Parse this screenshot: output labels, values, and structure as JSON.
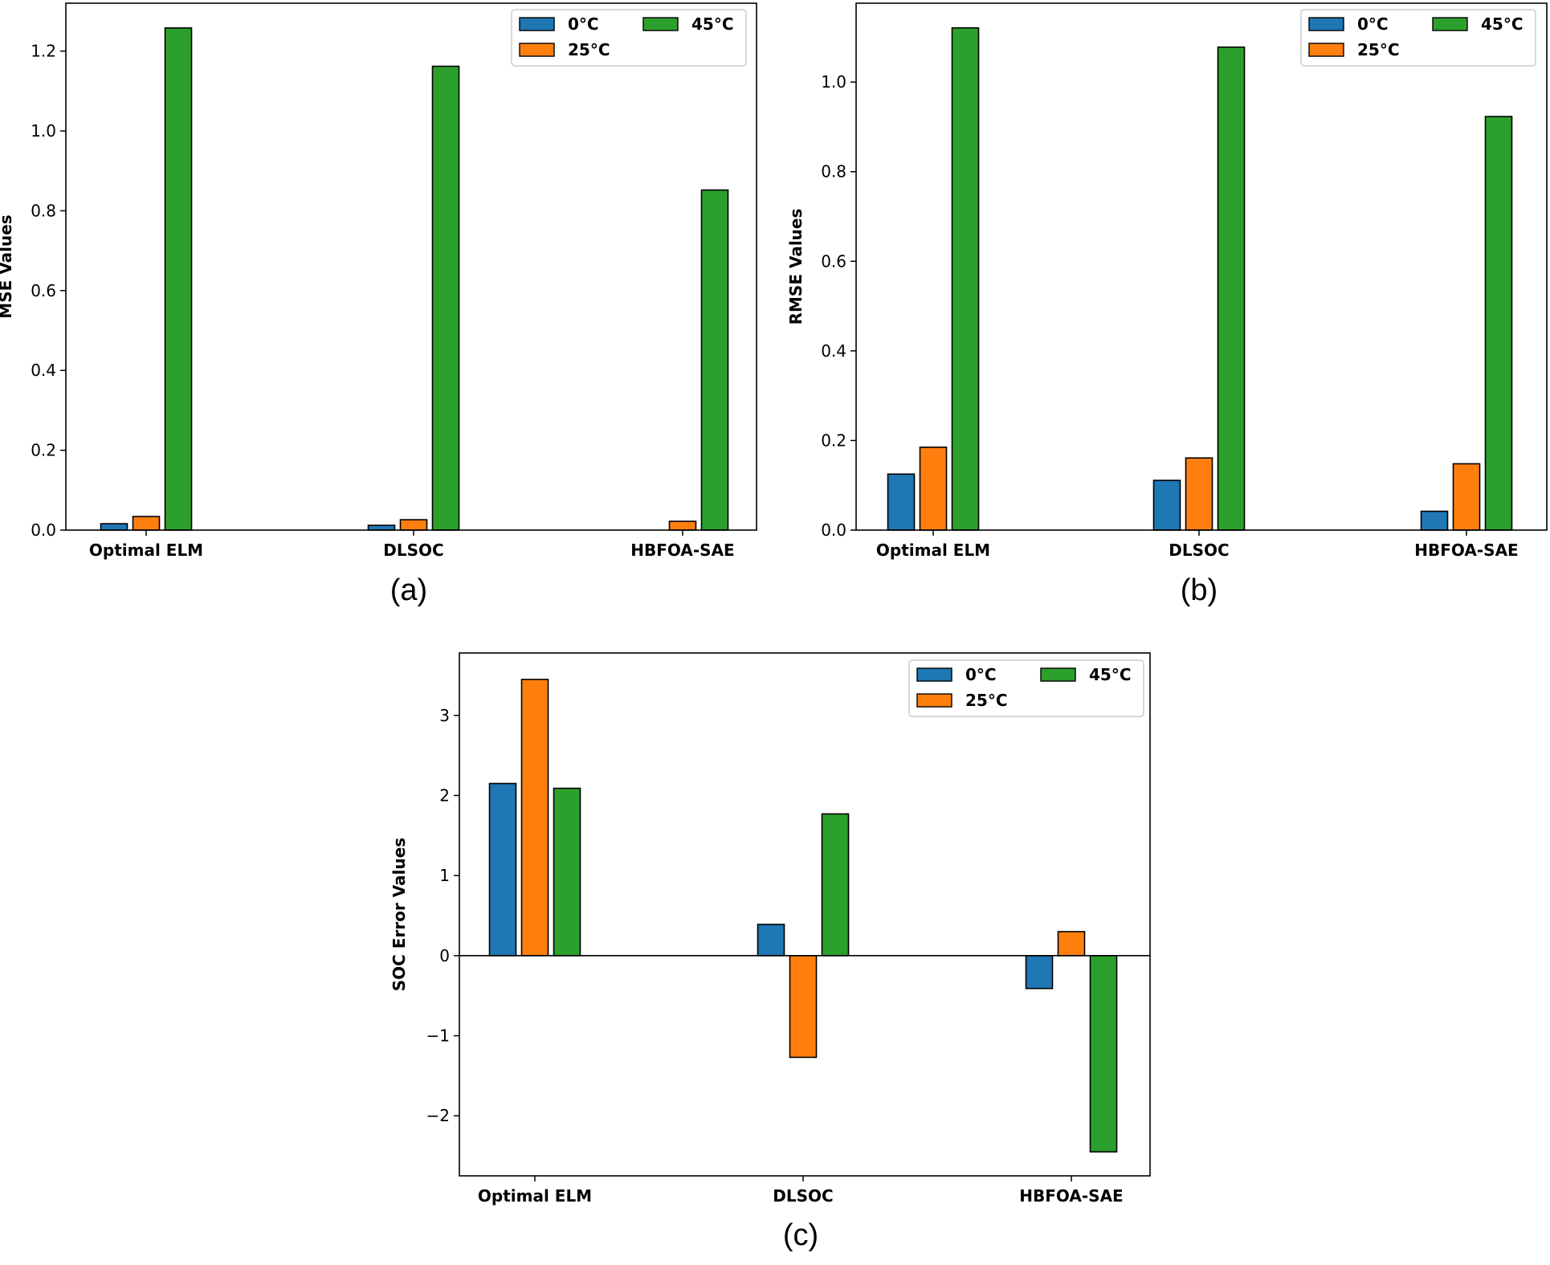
{
  "figure": {
    "panel_labels": [
      "(a)",
      "(b)",
      "(c)"
    ]
  },
  "colors": {
    "0°C": "#1f77b4",
    "25°C": "#ff7f0e",
    "45°C": "#2ca02c",
    "axis": "#000000",
    "edge": "#000000"
  },
  "chart_data": [
    {
      "type": "bar",
      "panel": "(a)",
      "title": "",
      "xlabel": "",
      "ylabel": "MSE Values",
      "categories": [
        "Optimal ELM",
        "DLSOC",
        "HBFOA-SAE"
      ],
      "series": [
        {
          "name": "0°C",
          "values": [
            0.016,
            0.012,
            0.0
          ]
        },
        {
          "name": "25°C",
          "values": [
            0.034,
            0.026,
            0.022
          ]
        },
        {
          "name": "45°C",
          "values": [
            1.258,
            1.162,
            0.852
          ]
        }
      ],
      "ylim": [
        0.0,
        1.32
      ],
      "yticks": [
        0.0,
        0.2,
        0.4,
        0.6,
        0.8,
        1.0,
        1.2
      ],
      "ytick_labels": [
        "0.0",
        "0.2",
        "0.4",
        "0.6",
        "0.8",
        "1.0",
        "1.2"
      ],
      "legend": {
        "placement": "top-right",
        "ncol": 2,
        "entries": [
          "0°C",
          "25°C",
          "45°C"
        ]
      },
      "grid": false
    },
    {
      "type": "bar",
      "panel": "(b)",
      "title": "",
      "xlabel": "",
      "ylabel": "RMSE Values",
      "categories": [
        "Optimal ELM",
        "DLSOC",
        "HBFOA-SAE"
      ],
      "series": [
        {
          "name": "0°C",
          "values": [
            0.125,
            0.111,
            0.042
          ]
        },
        {
          "name": "25°C",
          "values": [
            0.185,
            0.161,
            0.148
          ]
        },
        {
          "name": "45°C",
          "values": [
            1.121,
            1.078,
            0.923
          ]
        }
      ],
      "ylim": [
        0.0,
        1.176
      ],
      "yticks": [
        0.0,
        0.2,
        0.4,
        0.6,
        0.8,
        1.0
      ],
      "ytick_labels": [
        "0.0",
        "0.2",
        "0.4",
        "0.6",
        "0.8",
        "1.0"
      ],
      "legend": {
        "placement": "top-right",
        "ncol": 2,
        "entries": [
          "0°C",
          "25°C",
          "45°C"
        ]
      },
      "grid": false
    },
    {
      "type": "bar",
      "panel": "(c)",
      "title": "",
      "xlabel": "",
      "ylabel": "SOC Error Values",
      "categories": [
        "Optimal ELM",
        "DLSOC",
        "HBFOA-SAE"
      ],
      "series": [
        {
          "name": "0°C",
          "values": [
            2.15,
            0.39,
            -0.41
          ]
        },
        {
          "name": "25°C",
          "values": [
            3.45,
            -1.27,
            0.3
          ]
        },
        {
          "name": "45°C",
          "values": [
            2.09,
            1.77,
            -2.45
          ]
        }
      ],
      "ylim": [
        -2.75,
        3.78
      ],
      "yticks": [
        -2,
        -1,
        0,
        1,
        2,
        3
      ],
      "ytick_labels": [
        "−2",
        "−1",
        "0",
        "1",
        "2",
        "3"
      ],
      "zero_line": true,
      "legend": {
        "placement": "top-right",
        "ncol": 2,
        "entries": [
          "0°C",
          "25°C",
          "45°C"
        ]
      },
      "grid": false
    }
  ]
}
